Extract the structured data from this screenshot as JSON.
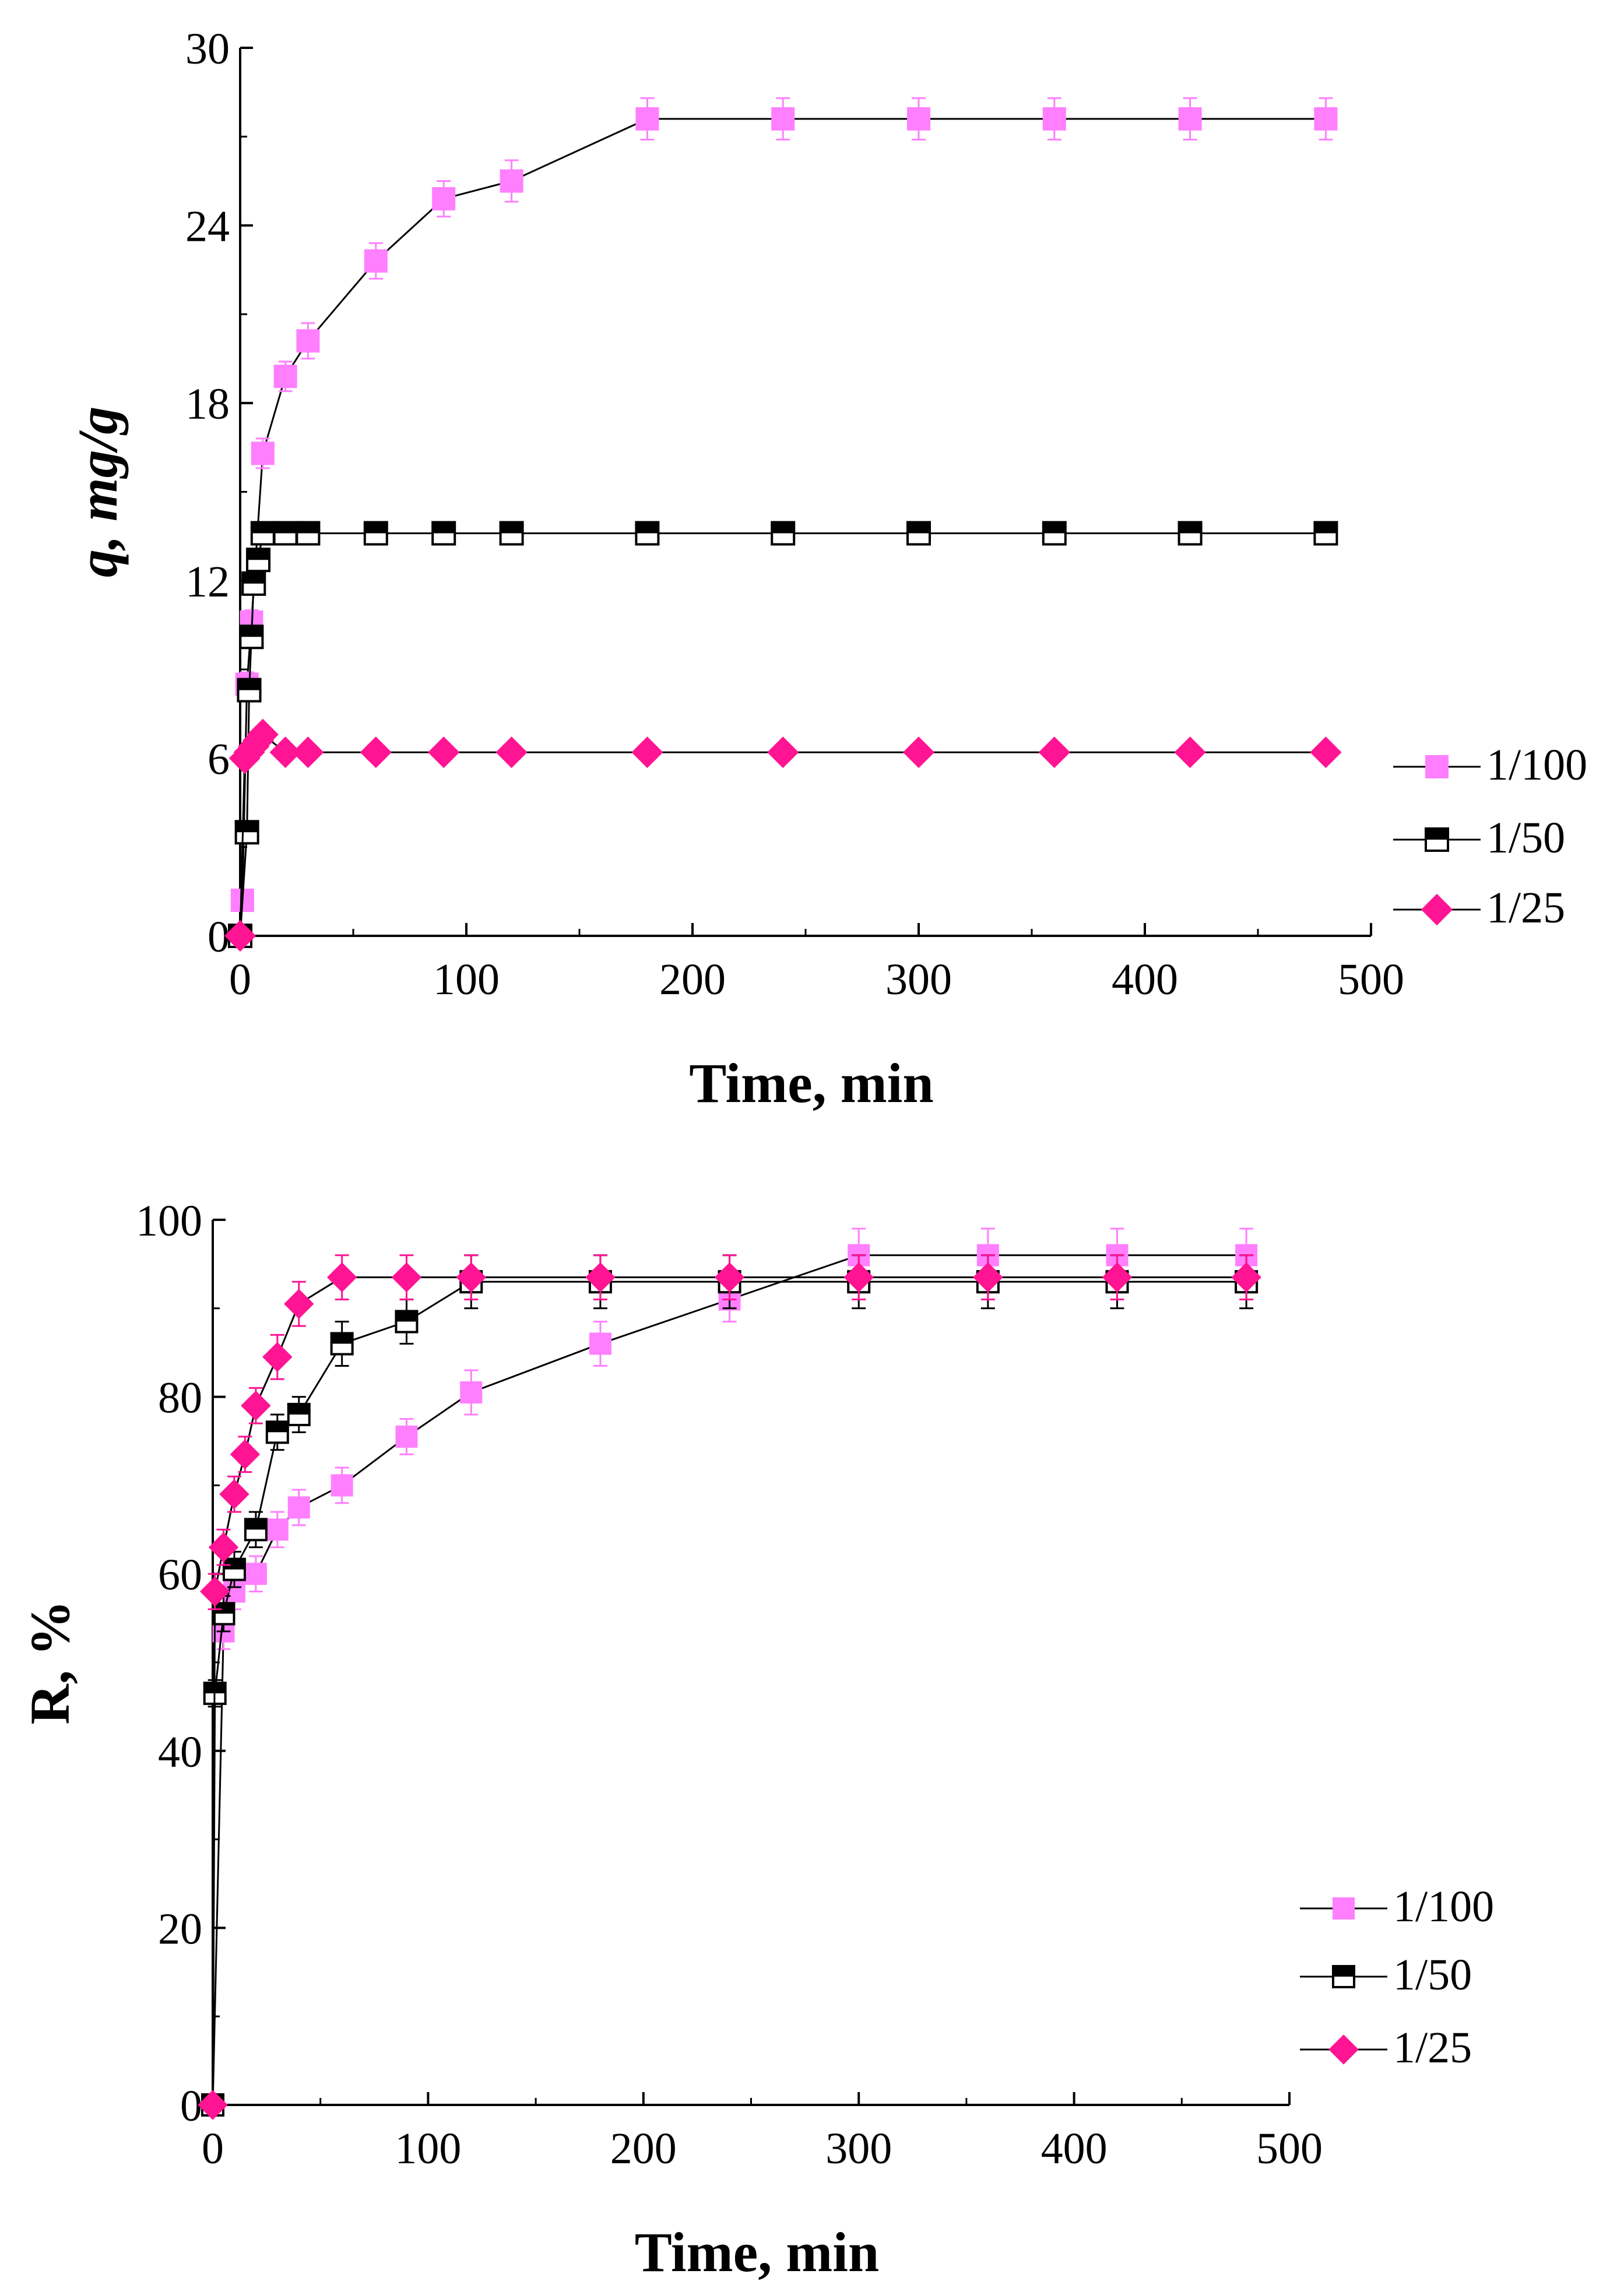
{
  "colors": {
    "series_1_100": "#ff7fff",
    "series_1_50": "#000000",
    "series_1_25": "#ff1493",
    "axis": "#000000",
    "line": "#000000"
  },
  "chart_data": [
    {
      "type": "line",
      "title": "",
      "xlabel": "Time, min",
      "ylabel": "q, mg/g",
      "xlim": [
        0,
        500
      ],
      "ylim": [
        0,
        30
      ],
      "xticks": [
        "0",
        "100",
        "200",
        "300",
        "400",
        "500"
      ],
      "yticks": [
        "0",
        "6",
        "12",
        "18",
        "24",
        "30"
      ],
      "grid": false,
      "legend_position": "right",
      "series": [
        {
          "name": "1/100",
          "marker": "square",
          "x": [
            0,
            1,
            3,
            5,
            10,
            20,
            30,
            60,
            90,
            120,
            180,
            240,
            300,
            360,
            420,
            480
          ],
          "values": [
            0,
            1.2,
            8.5,
            10.6,
            16.3,
            18.9,
            20.1,
            22.8,
            24.9,
            25.5,
            27.6,
            27.6,
            27.6,
            27.6,
            27.6,
            27.6
          ],
          "err": [
            0,
            0.3,
            0.4,
            0.4,
            0.5,
            0.5,
            0.6,
            0.6,
            0.6,
            0.7,
            0.7,
            0.7,
            0.7,
            0.7,
            0.7,
            0.7
          ]
        },
        {
          "name": "1/50",
          "marker": "half-square",
          "x": [
            0,
            3,
            4,
            5,
            6,
            8,
            10,
            20,
            30,
            60,
            90,
            120,
            180,
            240,
            300,
            360,
            420,
            480
          ],
          "values": [
            0,
            3.5,
            8.3,
            10.1,
            11.9,
            12.7,
            13.6,
            13.6,
            13.6,
            13.6,
            13.6,
            13.6,
            13.6,
            13.6,
            13.6,
            13.6,
            13.6,
            13.6
          ],
          "err": [
            0,
            0.3,
            0.3,
            0.3,
            0.3,
            0.3,
            0.3,
            0.3,
            0.3,
            0.3,
            0.3,
            0.3,
            0.3,
            0.3,
            0.3,
            0.3,
            0.3,
            0.3
          ]
        },
        {
          "name": "1/25",
          "marker": "diamond",
          "x": [
            0,
            2,
            4,
            6,
            8,
            10,
            20,
            30,
            60,
            90,
            120,
            180,
            240,
            300,
            360,
            420,
            480
          ],
          "values": [
            0,
            6.0,
            6.2,
            6.4,
            6.6,
            6.8,
            6.2,
            6.2,
            6.2,
            6.2,
            6.2,
            6.2,
            6.2,
            6.2,
            6.2,
            6.2,
            6.2
          ],
          "err": [
            0,
            0.15,
            0.15,
            0.15,
            0.15,
            0.15,
            0.15,
            0.15,
            0.15,
            0.15,
            0.15,
            0.15,
            0.15,
            0.15,
            0.15,
            0.15,
            0.15
          ]
        }
      ]
    },
    {
      "type": "line",
      "title": "",
      "xlabel": "Time, min",
      "ylabel": "R, %",
      "xlim": [
        0,
        500
      ],
      "ylim": [
        0,
        100
      ],
      "xticks": [
        "0",
        "100",
        "200",
        "300",
        "400",
        "500"
      ],
      "yticks": [
        "0",
        "20",
        "40",
        "60",
        "80",
        "100"
      ],
      "grid": false,
      "legend_position": "right",
      "series": [
        {
          "name": "1/100",
          "marker": "square",
          "x": [
            0,
            5,
            10,
            20,
            30,
            40,
            60,
            90,
            120,
            180,
            240,
            300,
            360,
            420,
            480
          ],
          "values": [
            0,
            53.5,
            58.0,
            60.0,
            65.0,
            67.5,
            70.0,
            75.5,
            80.5,
            86.0,
            91.0,
            96.0,
            96.0,
            96.0,
            96.0
          ],
          "err": [
            0,
            2,
            2,
            2,
            2,
            2,
            2,
            2,
            2.5,
            2.5,
            2.5,
            3,
            3,
            3,
            3
          ]
        },
        {
          "name": "1/50",
          "marker": "half-square",
          "x": [
            0,
            1,
            5,
            10,
            20,
            30,
            40,
            60,
            90,
            120,
            180,
            240,
            300,
            360,
            420,
            480
          ],
          "values": [
            0,
            46.5,
            55.5,
            60.5,
            65.0,
            76.0,
            78.0,
            86.0,
            88.5,
            93.0,
            93.0,
            93.0,
            93.0,
            93.0,
            93.0,
            93.0
          ],
          "err": [
            0,
            1.5,
            2,
            2,
            2,
            2,
            2,
            2.5,
            2.5,
            3,
            3,
            3,
            3,
            3,
            3,
            3
          ]
        },
        {
          "name": "1/25",
          "marker": "diamond",
          "x": [
            0,
            1,
            5,
            10,
            15,
            20,
            30,
            40,
            60,
            90,
            120,
            180,
            240,
            300,
            360,
            420,
            480
          ],
          "values": [
            0,
            58.0,
            63.0,
            69.0,
            73.5,
            79.0,
            84.5,
            90.5,
            93.5,
            93.5,
            93.5,
            93.5,
            93.5,
            93.5,
            93.5,
            93.5,
            93.5
          ],
          "err": [
            0,
            2,
            2,
            2,
            2,
            2,
            2.5,
            2.5,
            2.5,
            2.5,
            2.5,
            2.5,
            2.5,
            2.5,
            2.5,
            2.5,
            2.5
          ]
        }
      ]
    }
  ]
}
